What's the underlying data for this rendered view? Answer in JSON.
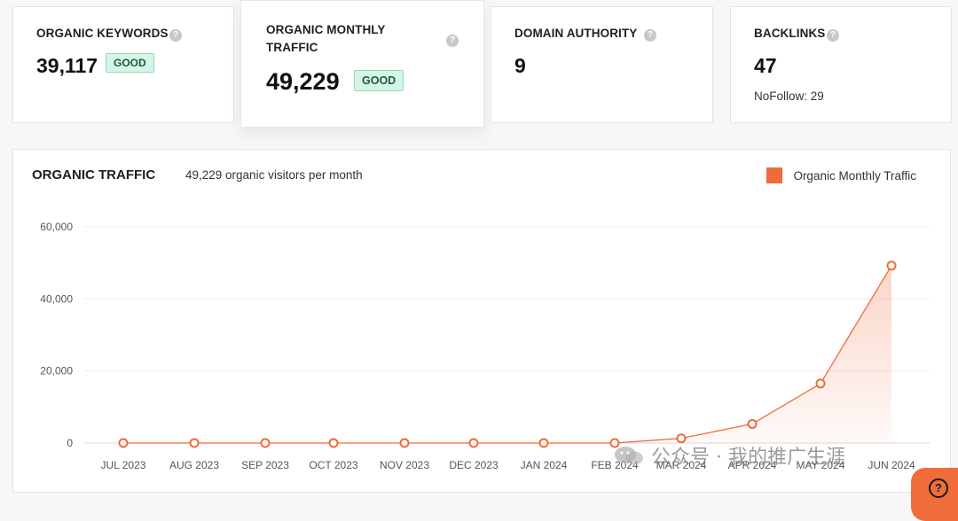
{
  "metrics": [
    {
      "title": "ORGANIC KEYWORDS",
      "value": "39,117",
      "badge": "GOOD"
    },
    {
      "title_line1": "ORGANIC MONTHLY",
      "title_line2": "TRAFFIC",
      "value": "49,229",
      "badge": "GOOD"
    },
    {
      "title": "DOMAIN AUTHORITY",
      "value": "9"
    },
    {
      "title": "BACKLINKS",
      "value": "47",
      "sub": "NoFollow: 29"
    }
  ],
  "help_glyph": "?",
  "chart": {
    "title": "ORGANIC TRAFFIC",
    "subtitle": "49,229 organic visitors per month",
    "legend": "Organic Monthly Traffic"
  },
  "chart_data": {
    "type": "area",
    "categories": [
      "JUL 2023",
      "AUG 2023",
      "SEP 2023",
      "OCT 2023",
      "NOV 2023",
      "DEC 2023",
      "JAN 2024",
      "FEB 2024",
      "MAR 2024",
      "APR 2024",
      "MAY 2024",
      "JUN 2024"
    ],
    "series": [
      {
        "name": "Organic Monthly Traffic",
        "values": [
          0,
          0,
          0,
          0,
          0,
          0,
          0,
          0,
          1300,
          5300,
          16500,
          49229
        ]
      }
    ],
    "yticks": [
      "0",
      "20,000",
      "40,000",
      "60,000"
    ],
    "ylim": [
      0,
      60000
    ],
    "grid": true,
    "legend_position": "top-right",
    "color": "#ef6b3a"
  },
  "watermark": "公众号 · 我的推广生涯",
  "fab_glyph": "?"
}
